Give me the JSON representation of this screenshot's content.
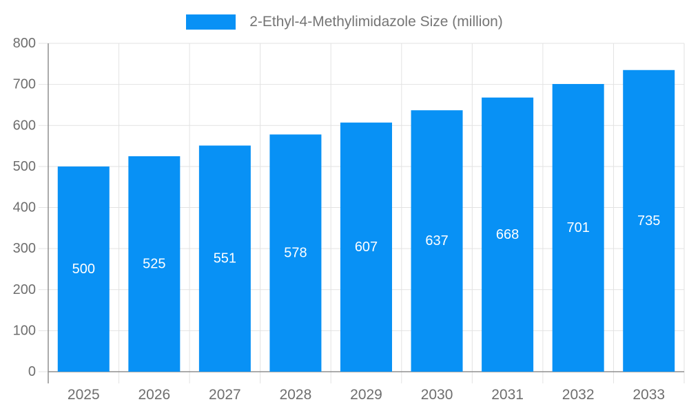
{
  "page": {
    "background": "#FFFFFF"
  },
  "colors": {
    "bar": "#0891F5",
    "grid": "#E2E2E2",
    "axis": "#8F8F8F",
    "tick_label": "#6E6E6E",
    "legend_text": "#757575",
    "bar_label": "#FFFFFF"
  },
  "chart_data": {
    "type": "bar",
    "title": "",
    "categories": [
      "2025",
      "2026",
      "2027",
      "2028",
      "2029",
      "2030",
      "2031",
      "2032",
      "2033"
    ],
    "series": [
      {
        "name": "2-Ethyl-4-Methylimidazole Size (million)",
        "values": [
          500,
          525,
          551,
          578,
          607,
          637,
          668,
          701,
          735
        ]
      }
    ],
    "xlabel": "",
    "ylabel": "",
    "ylim": [
      0,
      800
    ],
    "ytick_step": 100,
    "yticks": [
      0,
      100,
      200,
      300,
      400,
      500,
      600,
      700,
      800
    ],
    "grid": true,
    "legend_position": "top-center",
    "value_labels": "inside-center"
  }
}
